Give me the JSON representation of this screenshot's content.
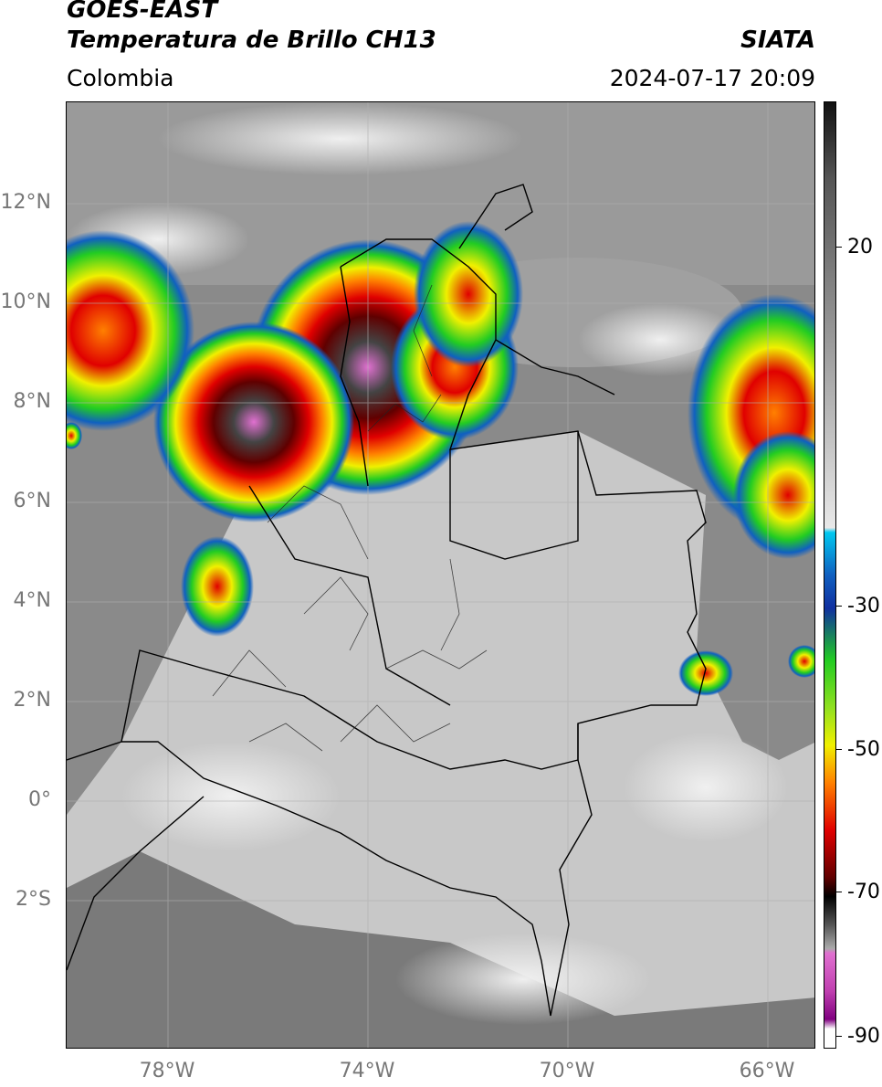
{
  "header": {
    "line1": "GOES-EAST",
    "line2": "Temperatura de Brillo CH13",
    "brand": "SIATA",
    "region": "Colombia",
    "datetime": "2024-07-17 20:09"
  },
  "map": {
    "lat_ticks": [
      "12°N",
      "10°N",
      "8°N",
      "6°N",
      "4°N",
      "2°N",
      "0°",
      "2°S"
    ],
    "lon_ticks": [
      "78°W",
      "74°W",
      "70°W",
      "66°W"
    ],
    "extent": {
      "lon_min": -80,
      "lon_max": -65,
      "lat_min": -5,
      "lat_max": 14
    }
  },
  "colorbar": {
    "ticks": [
      "20",
      "-30",
      "-50",
      "-70",
      "-90"
    ],
    "range": [
      -92,
      37
    ],
    "colors": {
      "warm_gray_top": "#111111",
      "warm_gray_bottom": "#e8e8e8",
      "cyan": "#00c8f0",
      "blue": "#1030a0",
      "green": "#22cc22",
      "yellow": "#f0f000",
      "orange": "#ff8000",
      "red": "#e00000",
      "dark_red": "#600000",
      "black": "#000000",
      "pink": "#e070d0",
      "purple": "#800080",
      "white": "#ffffff"
    }
  }
}
